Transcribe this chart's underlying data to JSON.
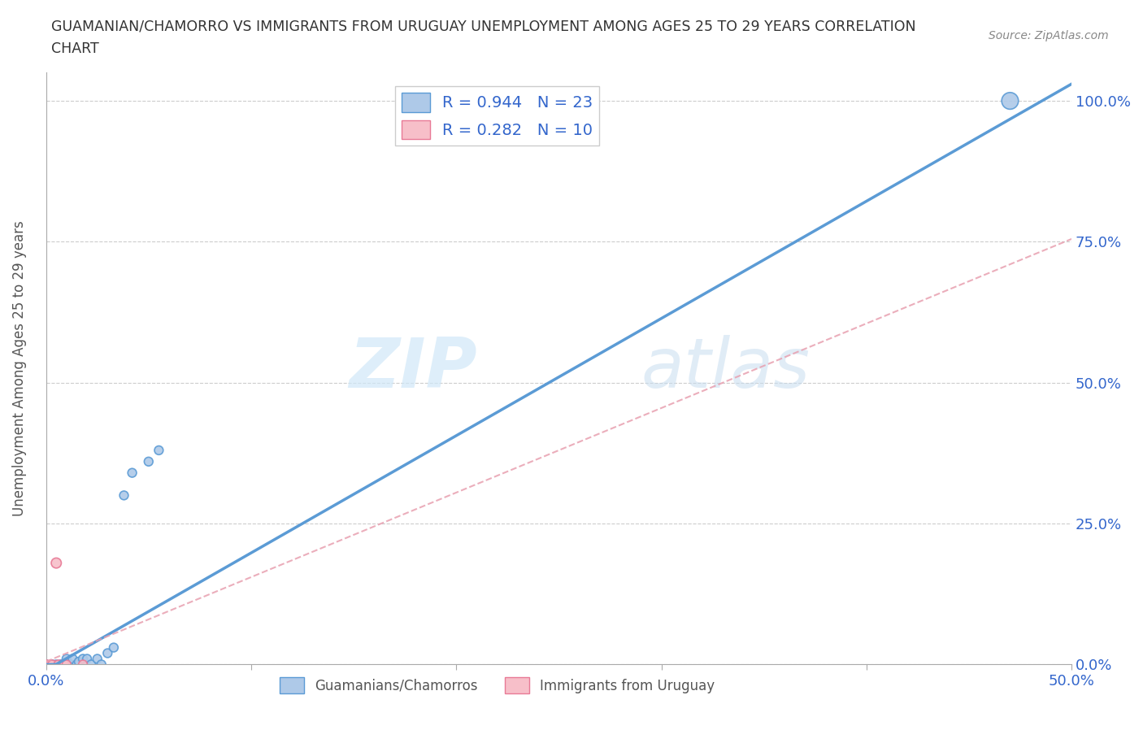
{
  "title_line1": "GUAMANIAN/CHAMORRO VS IMMIGRANTS FROM URUGUAY UNEMPLOYMENT AMONG AGES 25 TO 29 YEARS CORRELATION",
  "title_line2": "CHART",
  "source_text": "Source: ZipAtlas.com",
  "ylabel": "Unemployment Among Ages 25 to 29 years",
  "xlim": [
    0.0,
    0.5
  ],
  "ylim": [
    0.0,
    1.05
  ],
  "guamanian_x": [
    0.0,
    0.003,
    0.005,
    0.007,
    0.008,
    0.01,
    0.01,
    0.012,
    0.013,
    0.015,
    0.016,
    0.018,
    0.02,
    0.022,
    0.025,
    0.027,
    0.03,
    0.033,
    0.038,
    0.042,
    0.05,
    0.055,
    0.47
  ],
  "guamanian_y": [
    0.0,
    0.0,
    0.0,
    0.0,
    0.0,
    0.0,
    0.01,
    0.0,
    0.01,
    0.0,
    0.005,
    0.01,
    0.01,
    0.0,
    0.01,
    0.0,
    0.02,
    0.03,
    0.3,
    0.34,
    0.36,
    0.38,
    1.0
  ],
  "guamanian_sizes": [
    60,
    60,
    60,
    60,
    60,
    60,
    60,
    60,
    60,
    60,
    60,
    60,
    60,
    60,
    60,
    60,
    60,
    60,
    60,
    60,
    60,
    60,
    220
  ],
  "uruguay_x": [
    0.0,
    0.0,
    0.002,
    0.003,
    0.005,
    0.006,
    0.008,
    0.009,
    0.01,
    0.018
  ],
  "uruguay_y": [
    0.0,
    0.0,
    0.0,
    0.0,
    0.18,
    0.0,
    0.0,
    0.0,
    0.0,
    0.0
  ],
  "uruguay_sizes": [
    60,
    60,
    60,
    60,
    80,
    60,
    60,
    60,
    60,
    60
  ],
  "guamanian_color": "#aec9e8",
  "guamanian_edge_color": "#5b9bd5",
  "uruguay_color": "#f7bfc9",
  "uruguay_edge_color": "#e87a96",
  "trendline_guamanian_color": "#5b9bd5",
  "trendline_uruguay_color": "#e8a0b0",
  "R_guamanian": 0.944,
  "N_guamanian": 23,
  "R_uruguay": 0.282,
  "N_uruguay": 10,
  "legend1_label": "Guamanians/Chamorros",
  "legend2_label": "Immigrants from Uruguay",
  "watermark_zip": "ZIP",
  "watermark_atlas": "atlas",
  "background_color": "#ffffff",
  "grid_color": "#cccccc",
  "ytick_positions": [
    0.0,
    0.25,
    0.5,
    0.75,
    1.0
  ],
  "ytick_labels": [
    "0.0%",
    "25.0%",
    "50.0%",
    "75.0%",
    "100.0%"
  ],
  "xtick_positions": [
    0.0,
    0.1,
    0.2,
    0.3,
    0.4,
    0.5
  ],
  "xtick_labels": [
    "0.0%",
    "",
    "",
    "",
    "",
    "50.0%"
  ]
}
